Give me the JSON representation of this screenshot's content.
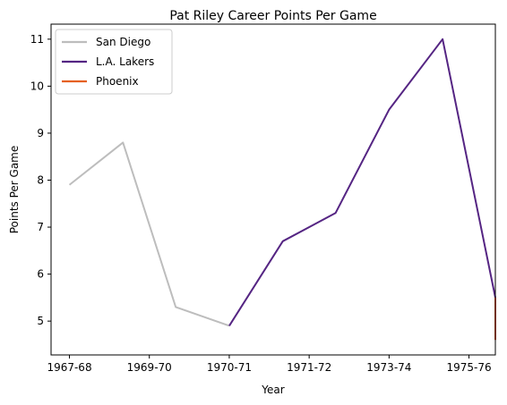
{
  "chart_data": {
    "type": "line",
    "title": "Pat Riley Career Points Per Game",
    "xlabel": "Year",
    "ylabel": "Points Per Game",
    "x_ticks": [
      "1967-68",
      "1969-70",
      "1970-71",
      "1971-72",
      "1973-74",
      "1975-76"
    ],
    "y_ticks": [
      5,
      6,
      7,
      8,
      9,
      10,
      11
    ],
    "xlim": [
      -0.23,
      5.33
    ],
    "ylim": [
      4.28,
      11.32
    ],
    "grid": false,
    "legend_position": "top-left",
    "series": [
      {
        "name": "San Diego",
        "color": "#bdbdbd",
        "points": [
          [
            0.0,
            7.9
          ],
          [
            0.67,
            8.8
          ],
          [
            1.33,
            5.3
          ],
          [
            2.0,
            4.9
          ]
        ]
      },
      {
        "name": "L.A. Lakers",
        "color": "#552583",
        "points": [
          [
            2.0,
            4.9
          ],
          [
            2.67,
            6.7
          ],
          [
            3.33,
            7.3
          ],
          [
            4.0,
            9.5
          ],
          [
            4.67,
            11.0
          ],
          [
            5.33,
            5.5
          ]
        ]
      },
      {
        "name": "Phoenix",
        "color": "#e56020",
        "points": [
          [
            5.33,
            5.5
          ],
          [
            5.33,
            4.6
          ]
        ]
      }
    ]
  }
}
